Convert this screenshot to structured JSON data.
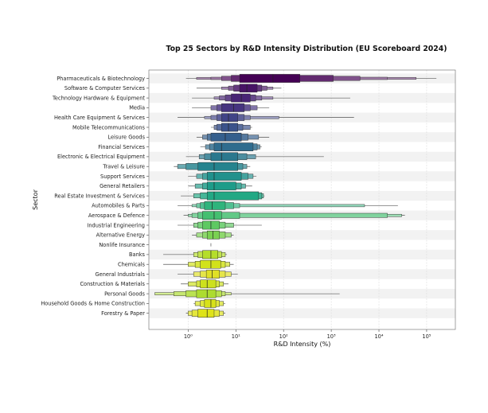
{
  "chart_data": {
    "type": "boxen",
    "title": "Top 25 Sectors by R&D Intensity Distribution (EU Scoreboard 2024)",
    "xlabel": "R&D Intensity (%)",
    "ylabel": "Sector",
    "xscale": "log",
    "xlim": [
      0.15,
      400000
    ],
    "xticks": [
      {
        "value": 1,
        "label": "10⁰"
      },
      {
        "value": 10,
        "label": "10¹"
      },
      {
        "value": 100,
        "label": "10²"
      },
      {
        "value": 1000,
        "label": "10³"
      },
      {
        "value": 10000,
        "label": "10⁴"
      },
      {
        "value": 100000,
        "label": "10⁵"
      }
    ],
    "grid": true,
    "categories": [
      {
        "name": "Pharmaceuticals & Biotechnology",
        "color": "#440154",
        "median": 60,
        "levels": [
          [
            12,
            220
          ],
          [
            8,
            1100
          ],
          [
            5,
            4000
          ],
          [
            3,
            15000
          ],
          [
            1.5,
            60000
          ]
        ],
        "whisker": [
          0.9,
          160000
        ]
      },
      {
        "name": "Software & Computer Services",
        "color": "#471365",
        "median": 17,
        "levels": [
          [
            12,
            28
          ],
          [
            9,
            35
          ],
          [
            7,
            45
          ],
          [
            5,
            60
          ]
        ],
        "whisker": [
          1.5,
          90
        ]
      },
      {
        "name": "Technology Hardware & Equipment",
        "color": "#482475",
        "median": 13,
        "levels": [
          [
            8,
            20
          ],
          [
            6,
            26
          ],
          [
            4.5,
            35
          ],
          [
            3.5,
            60
          ]
        ],
        "whisker": [
          1.2,
          2500
        ]
      },
      {
        "name": "Media",
        "color": "#463480",
        "median": 9,
        "levels": [
          [
            5,
            15
          ],
          [
            4,
            20
          ],
          [
            3,
            28
          ]
        ],
        "whisker": [
          1.2,
          50
        ]
      },
      {
        "name": "Health Care Equipment & Services",
        "color": "#414487",
        "median": 7,
        "levels": [
          [
            5,
            11
          ],
          [
            4,
            15
          ],
          [
            3,
            20
          ],
          [
            2.2,
            80
          ]
        ],
        "whisker": [
          0.6,
          3000
        ]
      },
      {
        "name": "Mobile Telecommunications",
        "color": "#3b528b",
        "median": 7,
        "levels": [
          [
            5,
            11
          ],
          [
            4,
            14
          ],
          [
            3.5,
            20
          ]
        ],
        "whisker": [
          3,
          22
        ]
      },
      {
        "name": "Leisure Goods",
        "color": "#355f8d",
        "median": 6,
        "levels": [
          [
            3,
            13
          ],
          [
            2.5,
            18
          ],
          [
            2,
            30
          ]
        ],
        "whisker": [
          1.5,
          50
        ]
      },
      {
        "name": "Financial Services",
        "color": "#2f6c8e",
        "median": 5,
        "levels": [
          [
            3.5,
            23
          ],
          [
            2.8,
            28
          ],
          [
            2.3,
            32
          ]
        ],
        "whisker": [
          1.8,
          35
        ]
      },
      {
        "name": "Electronic & Electrical Equipment",
        "color": "#2a788e",
        "median": 5,
        "levels": [
          [
            3,
            11
          ],
          [
            2.2,
            17
          ],
          [
            1.7,
            26
          ]
        ],
        "whisker": [
          0.9,
          700
        ]
      },
      {
        "name": "Travel & Leisure",
        "color": "#25838e",
        "median": 3.5,
        "levels": [
          [
            1.6,
            11
          ],
          [
            0.9,
            14
          ],
          [
            0.6,
            17
          ]
        ],
        "whisker": [
          0.5,
          20
        ]
      },
      {
        "name": "Support Services",
        "color": "#21918c",
        "median": 3.5,
        "levels": [
          [
            2.5,
            13
          ],
          [
            2,
            18
          ],
          [
            1.5,
            23
          ]
        ],
        "whisker": [
          1,
          27
        ]
      },
      {
        "name": "General Retailers",
        "color": "#1e9c89",
        "median": 3.5,
        "levels": [
          [
            2.5,
            10
          ],
          [
            2,
            13
          ],
          [
            1.4,
            16
          ]
        ],
        "whisker": [
          1,
          22
        ]
      },
      {
        "name": "Real Estate Investment & Services",
        "color": "#22a884",
        "median": 3.5,
        "levels": [
          [
            2.5,
            30
          ],
          [
            1.8,
            35
          ],
          [
            1.3,
            38
          ]
        ],
        "whisker": [
          0.7,
          40
        ]
      },
      {
        "name": "Automobiles & Parts",
        "color": "#2fb47c",
        "median": 3.2,
        "levels": [
          [
            2.2,
            6
          ],
          [
            1.8,
            9
          ],
          [
            1.5,
            12
          ],
          [
            1.2,
            5000
          ]
        ],
        "whisker": [
          0.6,
          25000
        ]
      },
      {
        "name": "Aerospace & Defence",
        "color": "#44bf70",
        "median": 3.5,
        "levels": [
          [
            2,
            5
          ],
          [
            1.6,
            12
          ],
          [
            1.2,
            15000
          ],
          [
            1,
            30000
          ]
        ],
        "whisker": [
          0.8,
          35000
        ]
      },
      {
        "name": "Industrial Engineering",
        "color": "#5ec962",
        "median": 3,
        "levels": [
          [
            2,
            4.5
          ],
          [
            1.6,
            6
          ],
          [
            1.3,
            9
          ]
        ],
        "whisker": [
          0.6,
          35
        ]
      },
      {
        "name": "Alternative Energy",
        "color": "#7ad151",
        "median": 3.3,
        "levels": [
          [
            2.5,
            4.5
          ],
          [
            2,
            6
          ],
          [
            1.5,
            8
          ]
        ],
        "whisker": [
          1.2,
          9
        ]
      },
      {
        "name": "Nonlife Insurance",
        "color": "#95d840",
        "median": 3.0,
        "levels": [],
        "whisker": [
          3.0,
          3.0
        ]
      },
      {
        "name": "Banks",
        "color": "#b5de2b",
        "median": 3,
        "levels": [
          [
            2,
            4.2
          ],
          [
            1.6,
            5
          ],
          [
            1.3,
            6
          ]
        ],
        "whisker": [
          0.3,
          6.5
        ]
      },
      {
        "name": "Chemicals",
        "color": "#d2e21b",
        "median": 3,
        "levels": [
          [
            1.8,
            4.8
          ],
          [
            1.4,
            6
          ],
          [
            1,
            7.5
          ]
        ],
        "whisker": [
          0.3,
          9
        ]
      },
      {
        "name": "General Industrials",
        "color": "#e0e027",
        "median": 3.2,
        "levels": [
          [
            2.4,
            4.5
          ],
          [
            1.8,
            6
          ],
          [
            1.3,
            8
          ]
        ],
        "whisker": [
          0.6,
          11
        ]
      },
      {
        "name": "Construction & Materials",
        "color": "#cde11d",
        "median": 2.5,
        "levels": [
          [
            1.8,
            3.8
          ],
          [
            1.5,
            4.5
          ],
          [
            1,
            5.5
          ]
        ],
        "whisker": [
          0.7,
          7
        ]
      },
      {
        "name": "Personal Goods",
        "color": "#addc30",
        "median": 2.5,
        "levels": [
          [
            1.5,
            3.8
          ],
          [
            0.9,
            5
          ],
          [
            0.5,
            6
          ],
          [
            0.2,
            8
          ]
        ],
        "whisker": [
          0.2,
          1500
        ]
      },
      {
        "name": "Household Goods & Home Construction",
        "color": "#d8e219",
        "median": 3,
        "levels": [
          [
            2.2,
            3.8
          ],
          [
            1.8,
            4.5
          ],
          [
            1.4,
            5.5
          ]
        ],
        "whisker": [
          1.3,
          6
        ]
      },
      {
        "name": "Forestry & Paper",
        "color": "#dfe318",
        "median": 2.5,
        "levels": [
          [
            1.6,
            3.5
          ],
          [
            1.2,
            4.5
          ],
          [
            1,
            5.5
          ]
        ],
        "whisker": [
          0.9,
          6
        ]
      }
    ]
  }
}
